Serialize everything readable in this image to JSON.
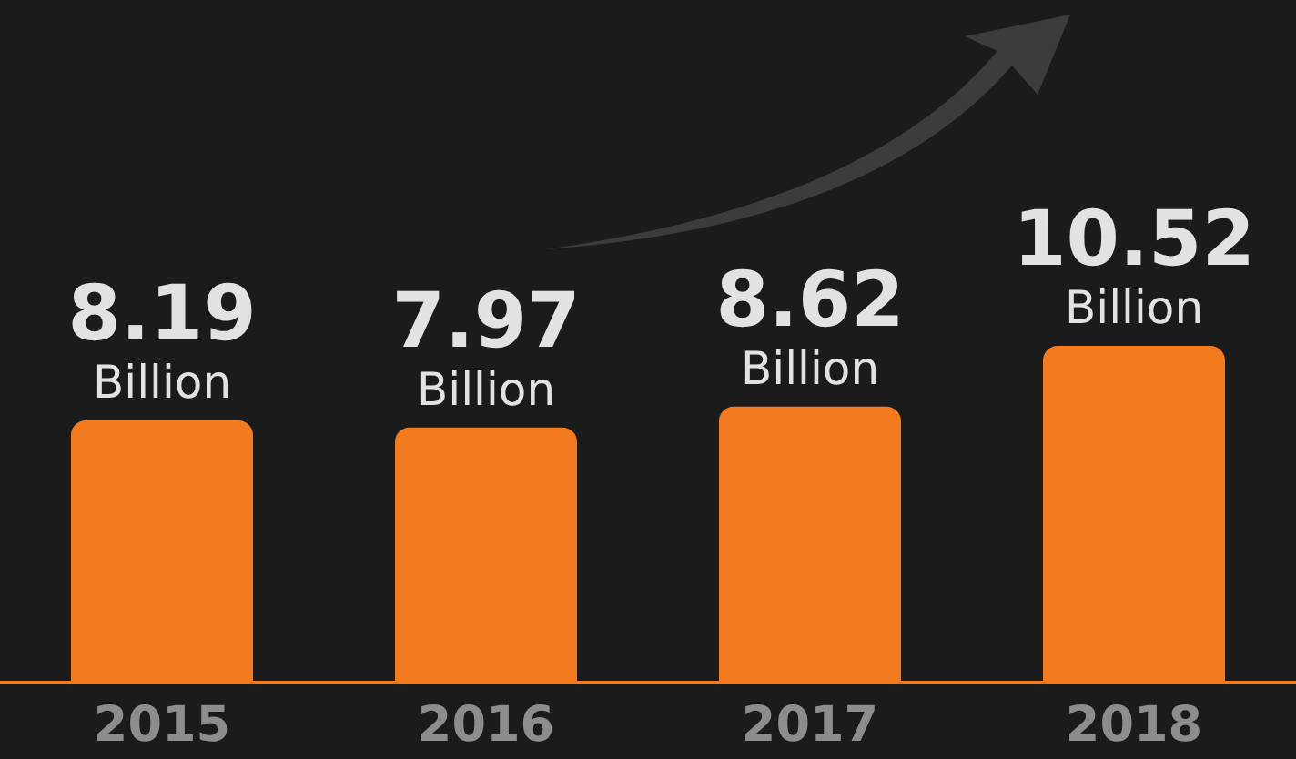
{
  "chart_data": {
    "type": "bar",
    "categories": [
      "2015",
      "2016",
      "2017",
      "2018"
    ],
    "values": [
      8.19,
      7.97,
      8.62,
      10.52
    ],
    "value_labels": [
      "8.19\nBillion",
      "7.97\nBillion",
      "8.62\nBillion",
      "10.52\nBillion"
    ],
    "color": "#f47a20"
  }
}
